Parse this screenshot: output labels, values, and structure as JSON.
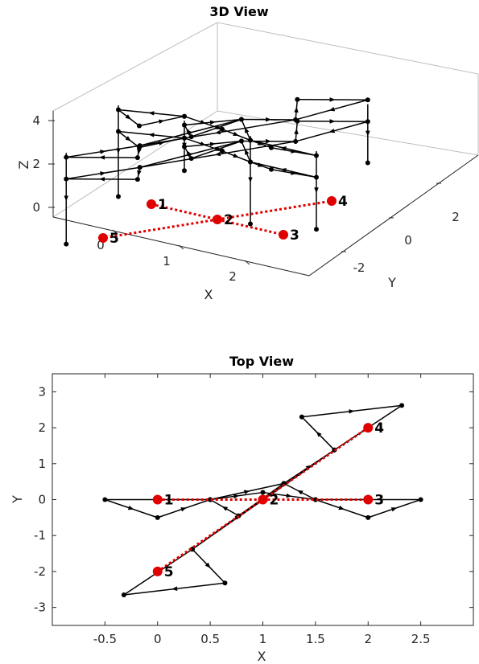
{
  "chart_data": [
    {
      "type": "line3d",
      "title": "3D View",
      "xlabel": "X",
      "ylabel": "Y",
      "zlabel": "Z",
      "x_ticks": [
        "0",
        "1",
        "2"
      ],
      "y_ticks": [
        "-2",
        "0",
        "2"
      ],
      "z_ticks": [
        "0",
        "2",
        "4"
      ],
      "xlim": [
        -0.5,
        2.5
      ],
      "ylim": [
        -3,
        3
      ],
      "zlim": [
        -0.5,
        5
      ],
      "grid": false,
      "box": true,
      "points": [
        {
          "label": "1",
          "x": 0,
          "y": 0,
          "z": 0
        },
        {
          "label": "2",
          "x": 1,
          "y": 0,
          "z": 0
        },
        {
          "label": "3",
          "x": 2,
          "y": 0,
          "z": 0
        },
        {
          "label": "4",
          "x": 2,
          "y": 2,
          "z": 0
        },
        {
          "label": "5",
          "x": 0,
          "y": -2,
          "z": 0
        }
      ],
      "red_links": [
        [
          1,
          2
        ],
        [
          2,
          3
        ],
        [
          2,
          4
        ],
        [
          2,
          5
        ]
      ],
      "point_color": "#e00000",
      "line_color": "#000000"
    },
    {
      "type": "line",
      "title": "Top View",
      "xlabel": "X",
      "ylabel": "Y",
      "x_ticks": [
        "-0.5",
        "0",
        "0.5",
        "1",
        "1.5",
        "2",
        "2.5"
      ],
      "y_ticks": [
        "3",
        "2",
        "1",
        "0",
        "-1",
        "-2",
        "-3"
      ],
      "xlim": [
        -1,
        3
      ],
      "ylim": [
        -3.5,
        3.5
      ],
      "grid": false,
      "points": [
        {
          "label": "1",
          "x": 0,
          "y": 0
        },
        {
          "label": "2",
          "x": 1,
          "y": 0
        },
        {
          "label": "3",
          "x": 2,
          "y": 0
        },
        {
          "label": "4",
          "x": 2,
          "y": 2
        },
        {
          "label": "5",
          "x": 0,
          "y": -2
        }
      ],
      "red_links": [
        [
          1,
          2
        ],
        [
          2,
          3
        ],
        [
          2,
          4
        ],
        [
          2,
          5
        ]
      ],
      "trajectory": [
        [
          0.5,
          0
        ],
        [
          -0.5,
          0
        ],
        [
          0,
          -0.5
        ],
        [
          0.5,
          0
        ],
        [
          1,
          0.2
        ],
        [
          1.5,
          0
        ],
        [
          2,
          -0.5
        ],
        [
          2.5,
          0
        ],
        [
          1.5,
          0
        ],
        [
          1.2,
          0.45
        ],
        [
          0.77,
          -0.45
        ],
        [
          0.5,
          0
        ],
        [
          1.2,
          0.45
        ],
        [
          1.68,
          1.38
        ],
        [
          1.37,
          2.3
        ],
        [
          2.32,
          2.62
        ],
        [
          1.68,
          1.38
        ],
        [
          0.33,
          -1.38
        ],
        [
          0.64,
          -2.32
        ],
        [
          -0.32,
          -2.65
        ],
        [
          0.33,
          -1.38
        ],
        [
          1.2,
          0.45
        ]
      ],
      "point_color": "#e00000",
      "line_color": "#000000"
    }
  ]
}
